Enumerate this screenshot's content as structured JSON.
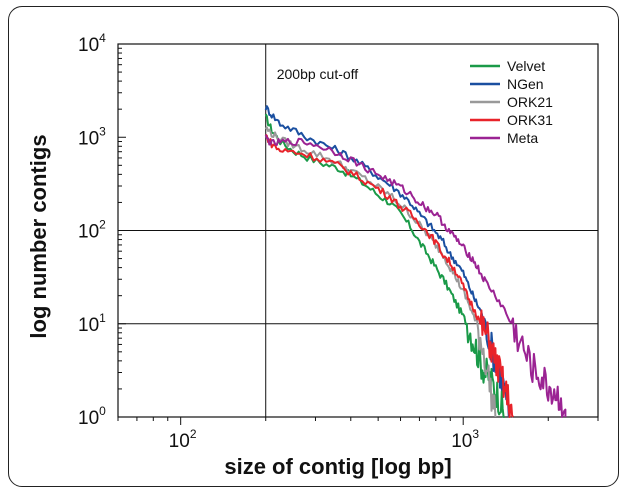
{
  "chart_data": {
    "type": "line",
    "xlabel": "size of contig [log bp]",
    "ylabel": "log number contigs",
    "annotation": "200bp cut-off",
    "cutoff_x": 200,
    "xscale": "log",
    "yscale": "log",
    "xlim": [
      60,
      3000
    ],
    "ylim": [
      1,
      10000
    ],
    "x_ticks": [
      {
        "base": "10",
        "exp": "2",
        "value": 100
      },
      {
        "base": "10",
        "exp": "3",
        "value": 1000
      }
    ],
    "y_ticks": [
      {
        "base": "10",
        "exp": "0",
        "value": 1
      },
      {
        "base": "10",
        "exp": "1",
        "value": 10
      },
      {
        "base": "10",
        "exp": "2",
        "value": 100
      },
      {
        "base": "10",
        "exp": "3",
        "value": 1000
      },
      {
        "base": "10",
        "exp": "4",
        "value": 10000
      }
    ],
    "grid": "major lines at 10^1, 10^2 and at the 200bp cut-off",
    "legend_position": "top-right",
    "series": [
      {
        "name": "Velvet",
        "color": "#1a9a48",
        "x": [
          200,
          210,
          225,
          250,
          280,
          320,
          360,
          400,
          450,
          500,
          550,
          600,
          650,
          700,
          750,
          800,
          850,
          900,
          950,
          1000,
          1050,
          1100,
          1150,
          1200,
          1250,
          1300,
          1350,
          1400
        ],
        "y": [
          1650,
          1200,
          900,
          720,
          610,
          520,
          470,
          390,
          310,
          240,
          200,
          150,
          110,
          75,
          55,
          40,
          30,
          22,
          16,
          12,
          9,
          6,
          4,
          3,
          2.5,
          2,
          1.5,
          1
        ]
      },
      {
        "name": "NGen",
        "color": "#1a4fa0",
        "x": [
          200,
          210,
          225,
          250,
          280,
          320,
          360,
          400,
          450,
          500,
          550,
          600,
          650,
          700,
          750,
          800,
          850,
          900,
          950,
          1000,
          1050,
          1100,
          1150,
          1200,
          1250,
          1300,
          1350,
          1400,
          1450
        ],
        "y": [
          2100,
          1750,
          1400,
          1200,
          1000,
          840,
          720,
          610,
          480,
          380,
          310,
          250,
          200,
          150,
          120,
          95,
          75,
          55,
          45,
          35,
          25,
          18,
          14,
          10,
          6,
          4,
          3,
          2,
          1
        ]
      },
      {
        "name": "ORK21",
        "color": "#999999",
        "x": [
          200,
          210,
          225,
          250,
          280,
          320,
          360,
          400,
          450,
          500,
          550,
          600,
          650,
          700,
          750,
          800,
          850,
          900,
          950,
          1000,
          1050,
          1100,
          1150,
          1200,
          1250,
          1300
        ],
        "y": [
          1250,
          1100,
          950,
          820,
          720,
          620,
          530,
          440,
          360,
          290,
          240,
          190,
          150,
          115,
          90,
          70,
          55,
          40,
          30,
          22,
          16,
          11,
          7,
          4,
          2,
          1
        ]
      },
      {
        "name": "ORK31",
        "color": "#e8232a",
        "x": [
          200,
          210,
          225,
          250,
          280,
          320,
          360,
          400,
          450,
          500,
          550,
          600,
          650,
          700,
          750,
          800,
          850,
          900,
          950,
          1000,
          1050,
          1100,
          1150,
          1200,
          1250,
          1300,
          1350,
          1400,
          1450,
          1500
        ],
        "y": [
          1050,
          850,
          720,
          700,
          650,
          570,
          500,
          420,
          340,
          280,
          230,
          180,
          150,
          120,
          95,
          75,
          55,
          45,
          35,
          25,
          18,
          14,
          10,
          8,
          6,
          4,
          3,
          2,
          1.5,
          1
        ]
      },
      {
        "name": "Meta",
        "color": "#9b2393",
        "x": [
          200,
          210,
          225,
          250,
          280,
          320,
          360,
          400,
          450,
          500,
          550,
          600,
          650,
          700,
          750,
          800,
          850,
          900,
          950,
          1000,
          1050,
          1100,
          1150,
          1200,
          1300,
          1400,
          1500,
          1600,
          1700,
          1800,
          1900,
          2000,
          2100,
          2200,
          2300
        ],
        "y": [
          1000,
          850,
          880,
          900,
          880,
          780,
          680,
          580,
          470,
          400,
          340,
          290,
          245,
          200,
          170,
          150,
          120,
          95,
          80,
          65,
          55,
          45,
          35,
          28,
          20,
          14,
          9,
          6,
          4,
          3,
          2.5,
          2,
          1.8,
          1.5,
          1.2
        ]
      }
    ]
  }
}
